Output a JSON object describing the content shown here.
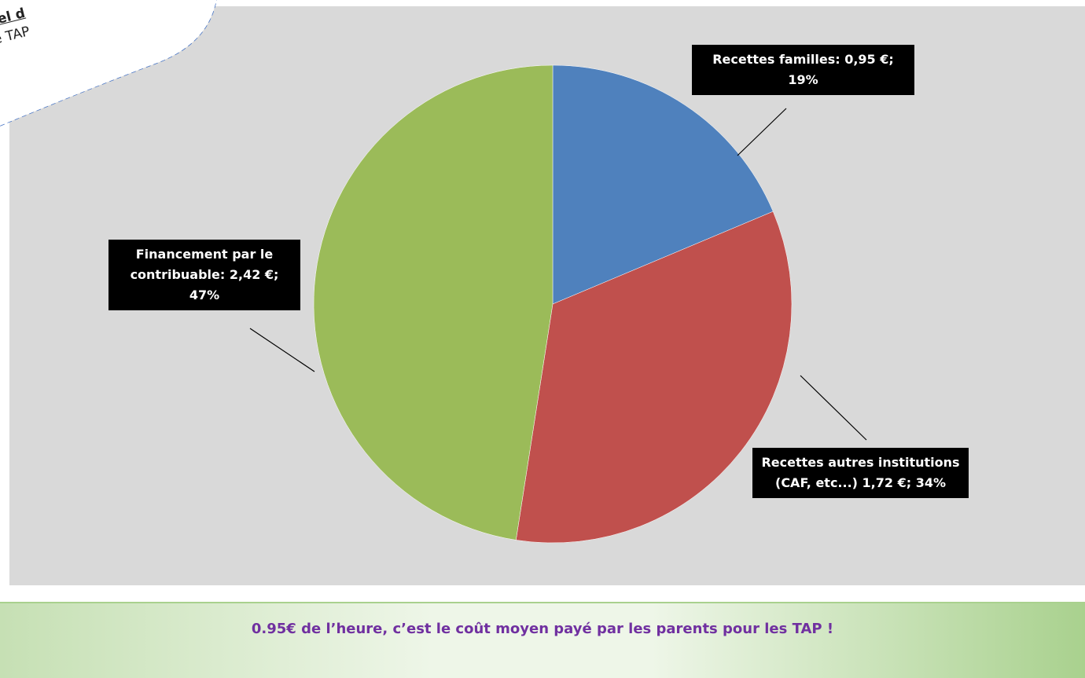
{
  "chart_data": {
    "type": "pie",
    "categories": [
      "Recettes familles",
      "Recettes autres institutions (CAF, etc...)",
      "Financement par le contribuable"
    ],
    "values": [
      0.95,
      1.72,
      2.42
    ],
    "value_labels": [
      "Recettes familles: 0,95 €; 19%",
      "Recettes autres institutions (CAF, etc...) 1,72 €;  34%",
      "Financement par le contribuable: 2,42 €; 47%"
    ],
    "colors": [
      "#4f81bd",
      "#c0504d",
      "#9bbb59"
    ]
  },
  "callout": {
    "lines": [
      "réel d",
      "de TAP"
    ]
  },
  "banner": "0.95€ de l’heure, c’est le coût moyen payé par les parents pour les TAP !"
}
